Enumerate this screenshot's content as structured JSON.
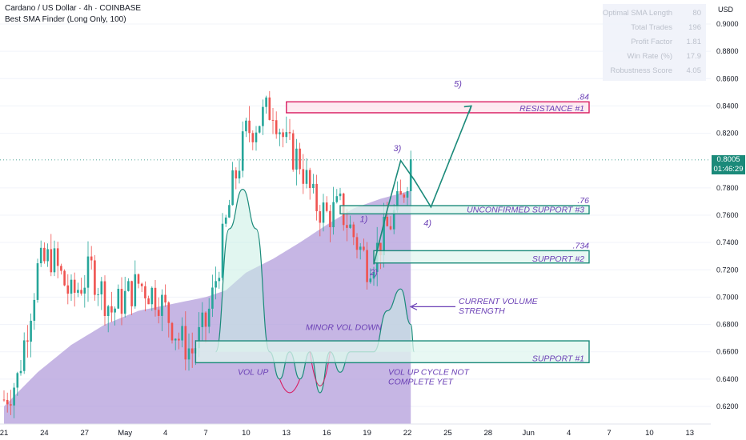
{
  "header": {
    "title": "Cardano / US Dollar · 4h · COINBASE",
    "indicator": "Best SMA Finder (Long Only, 100)"
  },
  "stats": [
    {
      "label": "Optimal SMA Length",
      "value": "80"
    },
    {
      "label": "Total Trades",
      "value": "196"
    },
    {
      "label": "Profit Factor",
      "value": "1.81"
    },
    {
      "label": "Win Rate (%)",
      "value": "17.9"
    },
    {
      "label": "Robustness Score",
      "value": "4.05"
    }
  ],
  "price_axis": {
    "currency": "USD",
    "current_price": "0.8005",
    "countdown": "01:46:29"
  },
  "colors": {
    "up": "#26a69a",
    "down": "#ef5350",
    "sma_fill": "#b39ddb",
    "annotation_green": "#1b8a7a",
    "annotation_pink": "#d81b60",
    "annotation_purple": "#6a3fb5"
  },
  "chart_data": {
    "type": "candlestick",
    "symbol": "Cardano / US Dollar",
    "timeframe": "4h",
    "ylim": [
      0.61,
      0.92
    ],
    "y_ticks": [
      "0.9000",
      "0.8800",
      "0.8600",
      "0.8400",
      "0.8200",
      "0.7800",
      "0.7600",
      "0.7400",
      "0.7200",
      "0.7000",
      "0.6800",
      "0.6600",
      "0.6400",
      "0.6200"
    ],
    "x_ticks": [
      "21",
      "24",
      "27",
      "May",
      "4",
      "7",
      "10",
      "13",
      "16",
      "19",
      "22",
      "25",
      "28",
      "Jun",
      "4",
      "7",
      "10",
      "13"
    ],
    "x_tick_index": [
      0,
      12,
      24,
      36,
      48,
      60,
      72,
      84,
      96,
      108,
      120,
      132,
      144,
      156,
      168,
      180,
      192,
      204
    ],
    "candles_count": 122,
    "close_anchors": [
      [
        0,
        0.625
      ],
      [
        4,
        0.64
      ],
      [
        10,
        0.72
      ],
      [
        14,
        0.73
      ],
      [
        20,
        0.7
      ],
      [
        26,
        0.72
      ],
      [
        32,
        0.69
      ],
      [
        36,
        0.7
      ],
      [
        40,
        0.71
      ],
      [
        46,
        0.7
      ],
      [
        52,
        0.67
      ],
      [
        56,
        0.66
      ],
      [
        60,
        0.68
      ],
      [
        62,
        0.7
      ],
      [
        68,
        0.78
      ],
      [
        72,
        0.82
      ],
      [
        76,
        0.83
      ],
      [
        80,
        0.84
      ],
      [
        84,
        0.81
      ],
      [
        88,
        0.8
      ],
      [
        92,
        0.77
      ],
      [
        96,
        0.76
      ],
      [
        100,
        0.765
      ],
      [
        104,
        0.745
      ],
      [
        108,
        0.725
      ],
      [
        110,
        0.73
      ],
      [
        114,
        0.75
      ],
      [
        118,
        0.77
      ],
      [
        121,
        0.8
      ]
    ],
    "sma_anchors": [
      [
        0,
        0.62
      ],
      [
        10,
        0.645
      ],
      [
        20,
        0.665
      ],
      [
        30,
        0.68
      ],
      [
        40,
        0.69
      ],
      [
        50,
        0.695
      ],
      [
        60,
        0.7
      ],
      [
        66,
        0.705
      ],
      [
        72,
        0.718
      ],
      [
        80,
        0.728
      ],
      [
        88,
        0.74
      ],
      [
        96,
        0.753
      ],
      [
        104,
        0.765
      ],
      [
        112,
        0.772
      ],
      [
        121,
        0.778
      ]
    ],
    "volume_cycle_anchors": [
      [
        63,
        0.66
      ],
      [
        67,
        0.75
      ],
      [
        71,
        0.779
      ],
      [
        75,
        0.75
      ],
      [
        79,
        0.66
      ],
      [
        82,
        0.64
      ],
      [
        85,
        0.66
      ],
      [
        88,
        0.64
      ],
      [
        91,
        0.66
      ],
      [
        94,
        0.63
      ],
      [
        97,
        0.66
      ],
      [
        100,
        0.645
      ],
      [
        103,
        0.66
      ],
      [
        106,
        0.66
      ],
      [
        110,
        0.66
      ],
      [
        114,
        0.69
      ],
      [
        118,
        0.706
      ],
      [
        121,
        0.68
      ],
      [
        122,
        0.66
      ]
    ],
    "projection_path": [
      [
        110,
        0.724
      ],
      [
        114,
        0.764
      ],
      [
        118,
        0.8
      ],
      [
        122,
        0.786
      ],
      [
        127,
        0.766
      ],
      [
        139,
        0.84
      ]
    ],
    "levels": [
      {
        "name": "resistance",
        "price_label": ".84",
        "label": "RESISTANCE #1",
        "low": 0.835,
        "high": 0.843,
        "x_start": 84,
        "color": "pink"
      },
      {
        "name": "unconfirmed",
        "price_label": ".76",
        "label": "UNCONFIRMED SUPPORT #3",
        "low": 0.761,
        "high": 0.767,
        "x_start": 100,
        "color": "green"
      },
      {
        "name": "support2",
        "price_label": ".734",
        "label": "SUPPORT #2",
        "low": 0.725,
        "high": 0.734,
        "x_start": 110,
        "color": "green"
      },
      {
        "name": "support1",
        "price_label": "",
        "label": "SUPPORT #1",
        "low": 0.652,
        "high": 0.668,
        "x_start": 57,
        "color": "green"
      }
    ],
    "wave_labels": [
      {
        "text": "1)",
        "x": 107,
        "y": 0.755
      },
      {
        "text": "2)",
        "x": 110,
        "y": 0.716
      },
      {
        "text": "3)",
        "x": 117,
        "y": 0.807
      },
      {
        "text": "4)",
        "x": 126,
        "y": 0.752
      },
      {
        "text": "5)",
        "x": 135,
        "y": 0.854
      }
    ],
    "annotations": {
      "volume_strength": "CURRENT VOLUME\nSTRENGTH",
      "minor_vol_down": "MINOR VOL DOWN",
      "vol_up": "VOL UP",
      "vol_up_cycle": "VOL UP CYCLE NOT\nCOMPLETE YET"
    }
  }
}
